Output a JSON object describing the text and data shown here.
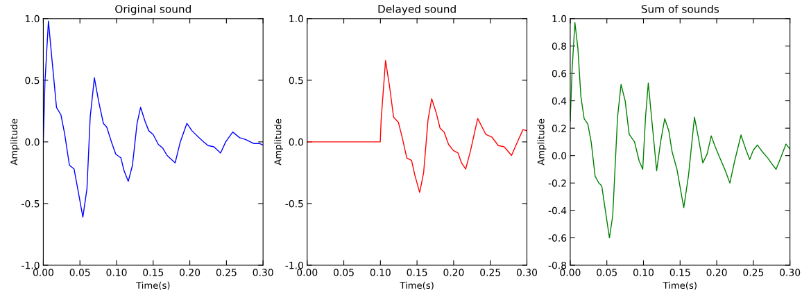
{
  "chart_data": [
    {
      "type": "line",
      "title": "Original sound",
      "xlabel": "Time(s)",
      "ylabel": "Amplitude",
      "xlim": [
        0,
        0.3
      ],
      "ylim": [
        -1,
        1
      ],
      "xticks": [
        {
          "value": 0,
          "label": "0.00"
        },
        {
          "value": 0.05,
          "label": "0.05"
        },
        {
          "value": 0.1,
          "label": "0.10"
        },
        {
          "value": 0.15,
          "label": "0.15"
        },
        {
          "value": 0.2,
          "label": "0.20"
        },
        {
          "value": 0.25,
          "label": "0.25"
        },
        {
          "value": 0.3,
          "label": "0.30"
        }
      ],
      "yticks": [
        {
          "value": -1,
          "label": "-1.0"
        },
        {
          "value": -0.5,
          "label": "-0.5"
        },
        {
          "value": 0,
          "label": "0.0"
        },
        {
          "value": 0.5,
          "label": "0.5"
        },
        {
          "value": 1,
          "label": "1.0"
        }
      ],
      "grid": false,
      "series": [
        {
          "color": "#0000ff",
          "x": [
            0,
            0.0022,
            0.007,
            0.0118,
            0.018,
            0.024,
            0.029,
            0.0357,
            0.042,
            0.047,
            0.054,
            0.0596,
            0.064,
            0.0697,
            0.0755,
            0.082,
            0.0866,
            0.093,
            0.099,
            0.106,
            0.11,
            0.116,
            0.1217,
            0.128,
            0.1328,
            0.139,
            0.144,
            0.15,
            0.157,
            0.163,
            0.169,
            0.18,
            0.187,
            0.196,
            0.203,
            0.2125,
            0.219,
            0.225,
            0.233,
            0.242,
            0.249,
            0.2586,
            0.268,
            0.276,
            0.287,
            0.295,
            0.3
          ],
          "values": [
            0,
            0.48,
            0.98,
            0.67,
            0.28,
            0.22,
            0.07,
            -0.19,
            -0.22,
            -0.38,
            -0.61,
            -0.38,
            0.2,
            0.52,
            0.33,
            0.15,
            0.12,
            0,
            -0.1,
            -0.13,
            -0.23,
            -0.32,
            -0.19,
            0.15,
            0.28,
            0.165,
            0.09,
            0.06,
            -0.02,
            -0.05,
            -0.11,
            -0.17,
            0,
            0.15,
            0.09,
            0.034,
            0,
            -0.03,
            -0.04,
            -0.09,
            0,
            0.08,
            0.034,
            0.02,
            -0.013,
            -0.013,
            -0.026
          ]
        }
      ]
    },
    {
      "type": "line",
      "title": "Delayed sound",
      "xlabel": "Time(s)",
      "ylabel": "Amplitude",
      "xlim": [
        0,
        0.3
      ],
      "ylim": [
        -1,
        1
      ],
      "xticks": [
        {
          "value": 0,
          "label": "0.00"
        },
        {
          "value": 0.05,
          "label": "0.05"
        },
        {
          "value": 0.1,
          "label": "0.10"
        },
        {
          "value": 0.15,
          "label": "0.15"
        },
        {
          "value": 0.2,
          "label": "0.20"
        },
        {
          "value": 0.25,
          "label": "0.25"
        },
        {
          "value": 0.3,
          "label": "0.30"
        }
      ],
      "yticks": [
        {
          "value": -1,
          "label": "-1.0"
        },
        {
          "value": -0.5,
          "label": "-0.5"
        },
        {
          "value": 0,
          "label": "0.0"
        },
        {
          "value": 0.5,
          "label": "0.5"
        },
        {
          "value": 1,
          "label": "1.0"
        }
      ],
      "grid": false,
      "series": [
        {
          "color": "#ff0000",
          "x": [
            0,
            0.0998,
            0.101,
            0.107,
            0.1125,
            0.118,
            0.1245,
            0.13,
            0.136,
            0.1425,
            0.147,
            0.1536,
            0.159,
            0.165,
            0.17,
            0.176,
            0.1815,
            0.187,
            0.193,
            0.1996,
            0.206,
            0.2107,
            0.2164,
            0.2227,
            0.2328,
            0.244,
            0.252,
            0.261,
            0.269,
            0.279,
            0.287,
            0.2946,
            0.3
          ],
          "values": [
            0,
            0,
            0.18,
            0.66,
            0.45,
            0.2,
            0.16,
            0.03,
            -0.13,
            -0.15,
            -0.27,
            -0.41,
            -0.25,
            0.18,
            0.35,
            0.24,
            0.11,
            0.08,
            -0.02,
            -0.07,
            -0.09,
            -0.17,
            -0.22,
            -0.08,
            0.19,
            0.06,
            0.04,
            -0.03,
            -0.04,
            -0.11,
            0,
            0.1,
            0.09
          ]
        }
      ]
    },
    {
      "type": "line",
      "title": "Sum of sounds",
      "xlabel": "Time(s)",
      "ylabel": "Amplitude",
      "xlim": [
        0,
        0.3
      ],
      "ylim": [
        -0.8,
        1
      ],
      "xticks": [
        {
          "value": 0,
          "label": "0.00"
        },
        {
          "value": 0.05,
          "label": "0.05"
        },
        {
          "value": 0.1,
          "label": "0.10"
        },
        {
          "value": 0.15,
          "label": "0.15"
        },
        {
          "value": 0.2,
          "label": "0.20"
        },
        {
          "value": 0.25,
          "label": "0.25"
        },
        {
          "value": 0.3,
          "label": "0.30"
        }
      ],
      "yticks": [
        {
          "value": -0.8,
          "label": "-0.8"
        },
        {
          "value": -0.6,
          "label": "-0.6"
        },
        {
          "value": -0.4,
          "label": "-0.4"
        },
        {
          "value": -0.2,
          "label": "-0.2"
        },
        {
          "value": 0,
          "label": "0.0"
        },
        {
          "value": 0.2,
          "label": "0.2"
        },
        {
          "value": 0.4,
          "label": "0.4"
        },
        {
          "value": 0.6,
          "label": "0.6"
        },
        {
          "value": 0.8,
          "label": "0.8"
        },
        {
          "value": 1,
          "label": "1.0"
        }
      ],
      "grid": false,
      "series": [
        {
          "color": "#008000",
          "x": [
            0,
            0.0025,
            0.0064,
            0.0105,
            0.0146,
            0.019,
            0.024,
            0.0286,
            0.034,
            0.039,
            0.043,
            0.0477,
            0.0535,
            0.058,
            0.0646,
            0.0694,
            0.075,
            0.0805,
            0.0878,
            0.094,
            0.099,
            0.1028,
            0.1066,
            0.111,
            0.118,
            0.1234,
            0.129,
            0.1346,
            0.139,
            0.1457,
            0.155,
            0.1616,
            0.1696,
            0.175,
            0.181,
            0.187,
            0.1925,
            0.198,
            0.2046,
            0.211,
            0.218,
            0.2246,
            0.2332,
            0.2396,
            0.245,
            0.25,
            0.2555,
            0.262,
            0.27,
            0.2745,
            0.281,
            0.287,
            0.2946,
            0.3
          ],
          "values": [
            0.25,
            0.62,
            0.97,
            0.78,
            0.43,
            0.27,
            0.23,
            0.1,
            -0.15,
            -0.2,
            -0.22,
            -0.39,
            -0.6,
            -0.44,
            0.28,
            0.52,
            0.4,
            0.156,
            0.1,
            -0.037,
            -0.1,
            0.28,
            0.53,
            0.28,
            -0.11,
            0.1,
            0.27,
            0.18,
            0.03,
            -0.1,
            -0.38,
            -0.14,
            0.28,
            0.13,
            -0.054,
            0.013,
            0.144,
            0.064,
            -0.02,
            -0.1,
            -0.2,
            -0.037,
            0.15,
            0.047,
            -0.028,
            0.04,
            0.077,
            0.03,
            -0.02,
            -0.054,
            -0.1,
            -0.02,
            0.084,
            0.047
          ]
        }
      ]
    }
  ]
}
